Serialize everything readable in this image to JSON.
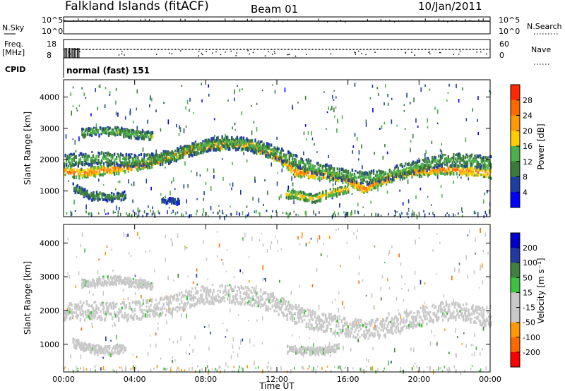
{
  "header": {
    "title": "Falkland Islands (fitACF)",
    "beam": "Beam 01",
    "date": "10/Jan/2011"
  },
  "strip_labels": {
    "nsky": "N.Sky",
    "freq_line1": "Freq.",
    "freq_line2": "[MHz]",
    "cpid": "CPID",
    "nsearch": "N.Search",
    "nave": "Nave",
    "nsky_ticks": [
      "10^5",
      "10^0"
    ],
    "nsearch_ticks": [
      "10^5",
      "10^0"
    ],
    "freq_ticks": [
      "18",
      "8"
    ],
    "nave_ticks": [
      "60",
      "0"
    ],
    "cpid_value": "normal (fast) 151"
  },
  "colors": {
    "power": [
      "#0000ff",
      "#1f3fa0",
      "#3a7a3a",
      "#4bb04b",
      "#ffcc00",
      "#ff9900",
      "#ff6a00",
      "#ff2a00"
    ],
    "velocity": [
      "#ff0000",
      "#ff6a00",
      "#ff9900",
      "#c8c8c8",
      "#c8c8c8",
      "#40c040",
      "#408040",
      "#203aa0",
      "#0000c8"
    ],
    "grey": "#c8c8c8"
  },
  "chart_data": [
    {
      "type": "heatmap",
      "name": "power",
      "title": "",
      "xlabel": "",
      "ylabel": "Slant Range [km]",
      "xlim": [
        "00:00",
        "00:00"
      ],
      "x_ticks": [
        "00:00",
        "04:00",
        "08:00",
        "12:00",
        "16:00",
        "20:00",
        "00:00"
      ],
      "ylim": [
        180,
        4550
      ],
      "y_ticks": [
        "4000",
        "3000",
        "2000",
        "1000"
      ],
      "colorbar": {
        "label": "Power [dB]",
        "ticks": [
          "28",
          "24",
          "20",
          "16",
          "12",
          "8",
          "4"
        ],
        "range": [
          0,
          32
        ]
      },
      "layers": [
        {
          "x": [
            0,
            1,
            1.5,
            2,
            2.8,
            3.5,
            4.5,
            5.8,
            6.8,
            7.5,
            8.5,
            9.5,
            10.5,
            11.5,
            12.5,
            13,
            14,
            14.8,
            15.8,
            16.8,
            17.5,
            18.5,
            19.5,
            20.5,
            21.5,
            22.5,
            23.5,
            24
          ],
          "y": [
            1650,
            1600,
            1650,
            1700,
            1750,
            1800,
            1900,
            2100,
            2300,
            2400,
            2500,
            2550,
            2500,
            2250,
            1950,
            1650,
            1600,
            1550,
            1450,
            1100,
            1300,
            1500,
            1650,
            1700,
            1750,
            1700,
            1650,
            1600
          ],
          "width_km": 300,
          "power_db": 26
        },
        {
          "x": [
            0,
            1,
            2,
            3,
            4,
            5,
            6,
            7,
            8,
            9,
            10,
            11,
            12,
            13,
            14,
            15,
            16,
            17,
            18,
            19,
            20,
            21,
            22,
            23,
            24
          ],
          "y": [
            2000,
            2050,
            2100,
            2050,
            2000,
            2050,
            2150,
            2350,
            2500,
            2600,
            2550,
            2450,
            2250,
            2000,
            1800,
            1650,
            1550,
            1450,
            1550,
            1700,
            1850,
            2000,
            2050,
            2000,
            1950
          ],
          "width_km": 400,
          "power_db": 14
        },
        {
          "x": [
            1,
            2,
            3,
            4,
            5
          ],
          "y": [
            2900,
            2950,
            2950,
            2850,
            2800
          ],
          "width_km": 250,
          "power_db": 15
        },
        {
          "x": [
            0.5,
            1.5,
            2.5,
            3.5
          ],
          "y": [
            1150,
            900,
            850,
            900
          ],
          "width_km": 250,
          "power_db": 12
        },
        {
          "x": [
            12.5,
            13.3,
            14,
            15.2,
            16
          ],
          "y": [
            950,
            900,
            800,
            1000,
            1100
          ],
          "width_km": 250,
          "power_db": 20
        },
        {
          "x": [
            5.5,
            6,
            6.5
          ],
          "y": [
            700,
            750,
            700
          ],
          "width_km": 150,
          "power_db": 8
        }
      ]
    },
    {
      "type": "heatmap",
      "name": "velocity",
      "title": "",
      "xlabel": "Time UT",
      "ylabel": "Slant Range [km]",
      "xlim": [
        "00:00",
        "00:00"
      ],
      "x_ticks": [
        "00:00",
        "04:00",
        "08:00",
        "12:00",
        "16:00",
        "20:00",
        "00:00"
      ],
      "ylim": [
        180,
        4550
      ],
      "y_ticks": [
        "4000",
        "3000",
        "2000",
        "1000"
      ],
      "colorbar": {
        "label": "Velocity [m s⁻¹]",
        "ticks": [
          "200",
          "100",
          "50",
          "15",
          "-15",
          "-50",
          "-100",
          "-200"
        ],
        "range": [
          -250,
          250
        ]
      },
      "layers": [
        {
          "x": [
            0,
            1,
            2,
            3,
            4,
            5,
            6,
            7,
            8,
            9,
            10,
            11,
            12,
            13,
            14,
            15,
            16,
            17,
            18,
            19,
            20,
            21,
            22,
            23,
            24
          ],
          "y": [
            2000,
            2050,
            2000,
            2000,
            2050,
            2100,
            2200,
            2400,
            2500,
            2550,
            2500,
            2400,
            2200,
            1950,
            1750,
            1650,
            1550,
            1450,
            1550,
            1700,
            1850,
            2000,
            2050,
            1950,
            1800
          ],
          "width_km": 550,
          "velocity": 0
        },
        {
          "x": [
            1,
            2,
            3,
            4,
            5
          ],
          "y": [
            2850,
            2900,
            2950,
            2850,
            2800
          ],
          "width_km": 250,
          "velocity": 0
        },
        {
          "x": [
            0.5,
            1.5,
            2.5,
            3.5
          ],
          "y": [
            1100,
            900,
            850,
            900
          ],
          "width_km": 250,
          "velocity": 0
        },
        {
          "x": [
            12.5,
            13.5,
            14.5,
            15.5
          ],
          "y": [
            900,
            850,
            850,
            950
          ],
          "width_km": 200,
          "velocity": 0
        }
      ]
    }
  ]
}
